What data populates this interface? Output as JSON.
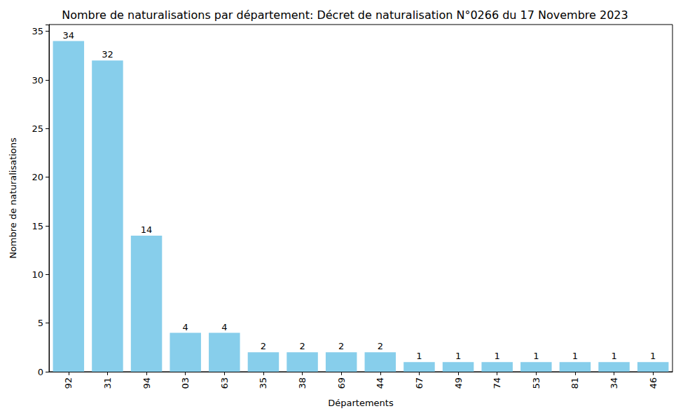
{
  "chart_data": {
    "type": "bar",
    "title": "Nombre de naturalisations par département: Décret de naturalisation N°0266 du 17 Novembre 2023",
    "x_label": "Départements",
    "y_label": "Nombre de naturalisations",
    "categories": [
      "92",
      "31",
      "94",
      "03",
      "63",
      "35",
      "38",
      "69",
      "44",
      "67",
      "49",
      "74",
      "53",
      "81",
      "34",
      "46"
    ],
    "values": [
      34,
      32,
      14,
      4,
      4,
      2,
      2,
      2,
      2,
      1,
      1,
      1,
      1,
      1,
      1,
      1
    ],
    "color": "#87ceeb",
    "ylim": [
      0,
      35.7
    ],
    "yticks": [
      0,
      5,
      10,
      15,
      20,
      25,
      30,
      35
    ],
    "grid": false,
    "data_labels": true
  }
}
